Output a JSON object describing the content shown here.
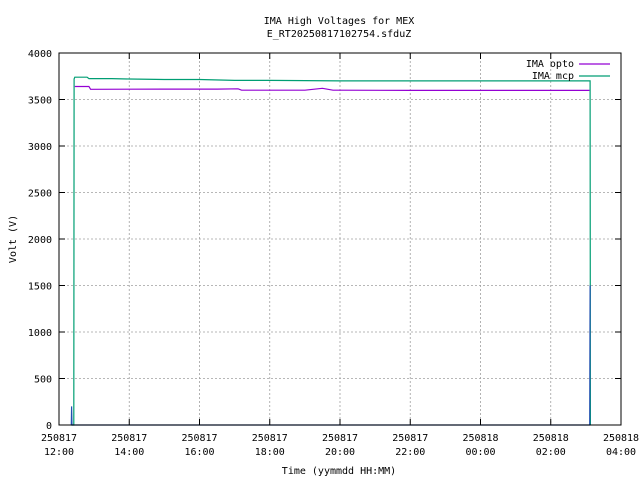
{
  "chart_data": {
    "type": "line",
    "title": "IMA High Voltages for MEX",
    "subtitle": "E_RT20250817102754.sfduZ",
    "xlabel": "Time (yymmdd HH:MM)",
    "ylabel": "Volt (V)",
    "xlim_hours": [
      12,
      28
    ],
    "ylim": [
      0,
      4000
    ],
    "grid": true,
    "legend_position": "top-right",
    "x_ticks": [
      {
        "hour": 12,
        "date": "250817",
        "time": "12:00"
      },
      {
        "hour": 14,
        "date": "250817",
        "time": "14:00"
      },
      {
        "hour": 16,
        "date": "250817",
        "time": "16:00"
      },
      {
        "hour": 18,
        "date": "250817",
        "time": "18:00"
      },
      {
        "hour": 20,
        "date": "250817",
        "time": "20:00"
      },
      {
        "hour": 22,
        "date": "250817",
        "time": "22:00"
      },
      {
        "hour": 24,
        "date": "250818",
        "time": "00:00"
      },
      {
        "hour": 26,
        "date": "250818",
        "time": "02:00"
      },
      {
        "hour": 28,
        "date": "250818",
        "time": "04:00"
      }
    ],
    "y_ticks": [
      0,
      500,
      1000,
      1500,
      2000,
      2500,
      3000,
      3500,
      4000
    ],
    "series": [
      {
        "name": "IMA mcp",
        "color": "#009e73",
        "x": [
          12.35,
          12.42,
          12.43,
          12.45,
          12.8,
          12.85,
          13.5,
          14.0,
          15.0,
          16.0,
          17.0,
          18.0,
          20.0,
          22.0,
          24.0,
          26.0,
          26.8,
          27.1,
          27.12,
          27.13
        ],
        "y": [
          0,
          0,
          3720,
          3740,
          3740,
          3725,
          3725,
          3720,
          3715,
          3715,
          3705,
          3705,
          3700,
          3700,
          3700,
          3700,
          3700,
          3700,
          3700,
          0
        ]
      },
      {
        "name": "IMA opto",
        "color": "#9400d3",
        "x": [
          12.45,
          12.5,
          12.85,
          12.9,
          15.0,
          16.5,
          17.1,
          17.2,
          19.0,
          19.5,
          19.8,
          20.0,
          22.0,
          24.0,
          26.0,
          27.1
        ],
        "y": [
          3640,
          3640,
          3640,
          3610,
          3612,
          3612,
          3615,
          3600,
          3600,
          3620,
          3600,
          3600,
          3598,
          3598,
          3598,
          3598
        ]
      },
      {
        "name": "",
        "color": "#2050b0",
        "x": [
          12.35,
          12.36,
          12.37,
          27.11,
          27.12
        ],
        "y": [
          0,
          200,
          0,
          0,
          1500
        ]
      }
    ]
  }
}
